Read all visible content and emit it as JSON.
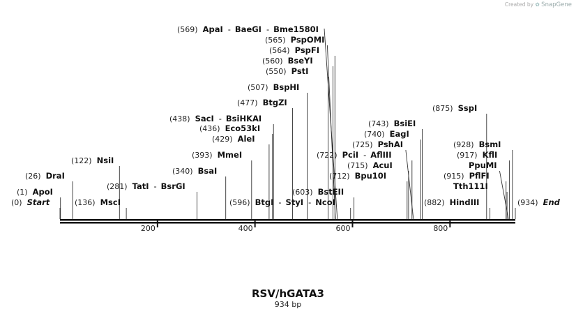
{
  "credit": {
    "created_by": "Created by",
    "brand": "SnapGene",
    "logo_icon": "snapgene-logo-icon"
  },
  "map": {
    "title": "RSV/hGATA3",
    "length_label": "934 bp",
    "length": 934,
    "ticks": [
      "200",
      "400",
      "600",
      "800"
    ],
    "labels": [
      {
        "position": "(0)",
        "names": [
          "Start"
        ],
        "style": "italic"
      },
      {
        "position": "(1)",
        "names": [
          "ApoI"
        ]
      },
      {
        "position": "(26)",
        "names": [
          "DraI"
        ]
      },
      {
        "position": "(122)",
        "names": [
          "NsiI"
        ]
      },
      {
        "position": "(136)",
        "names": [
          "MscI"
        ]
      },
      {
        "position": "(281)",
        "names": [
          "TatI",
          "BsrGI"
        ]
      },
      {
        "position": "(340)",
        "names": [
          "BsaI"
        ]
      },
      {
        "position": "(393)",
        "names": [
          "MmeI"
        ]
      },
      {
        "position": "(429)",
        "names": [
          "AleI"
        ]
      },
      {
        "position": "(436)",
        "names": [
          "Eco53kI"
        ]
      },
      {
        "position": "(438)",
        "names": [
          "SacI",
          "BsiHKAI"
        ]
      },
      {
        "position": "(477)",
        "names": [
          "BtgZI"
        ]
      },
      {
        "position": "(507)",
        "names": [
          "BspHI"
        ]
      },
      {
        "position": "(550)",
        "names": [
          "PstI"
        ]
      },
      {
        "position": "(560)",
        "names": [
          "BseYI"
        ]
      },
      {
        "position": "(564)",
        "names": [
          "PspFI"
        ]
      },
      {
        "position": "(565)",
        "names": [
          "PspOMI"
        ]
      },
      {
        "position": "(569)",
        "names": [
          "ApaI",
          "BaeGI",
          "Bme1580I"
        ]
      },
      {
        "position": "(596)",
        "names": [
          "BtgI",
          "StyI",
          "NcoI"
        ]
      },
      {
        "position": "(603)",
        "names": [
          "BstEII"
        ]
      },
      {
        "position": "(712)",
        "names": [
          "Bpu10I"
        ]
      },
      {
        "position": "(715)",
        "names": [
          "AcuI"
        ]
      },
      {
        "position": "(722)",
        "names": [
          "PciI",
          "AflIII"
        ]
      },
      {
        "position": "(725)",
        "names": [
          "PshAI"
        ]
      },
      {
        "position": "(740)",
        "names": [
          "EagI"
        ]
      },
      {
        "position": "(743)",
        "names": [
          "BsiEI"
        ]
      },
      {
        "position": "(875)",
        "names": [
          "SspI"
        ]
      },
      {
        "position": "(882)",
        "names": [
          "HindIII"
        ]
      },
      {
        "position": "(915)",
        "names": [
          "PflFI"
        ]
      },
      {
        "position": "",
        "names": [
          "Tth111I"
        ]
      },
      {
        "position": "",
        "names": [
          "PpuMI"
        ]
      },
      {
        "position": "(917)",
        "names": [
          "KflI"
        ]
      },
      {
        "position": "(928)",
        "names": [
          "BsmI"
        ]
      },
      {
        "position": "(934)",
        "names": [
          "End"
        ],
        "style": "italic"
      }
    ]
  }
}
